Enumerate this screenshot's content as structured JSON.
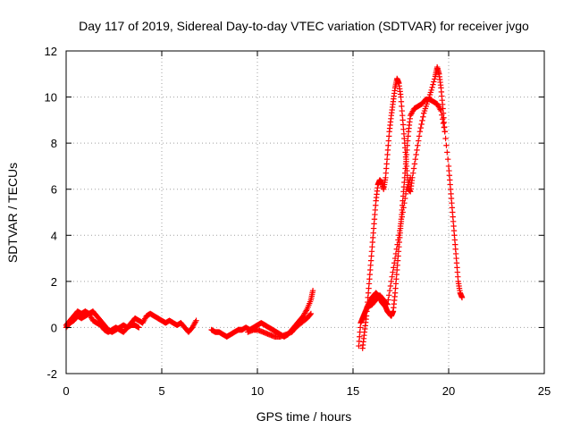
{
  "chart_data": {
    "type": "scatter",
    "title": "Day 117 of 2019, Sidereal Day-to-day VTEC variation (SDTVAR) for receiver jvgo",
    "xlabel": "GPS time / hours",
    "ylabel": "SDTVAR / TECUs",
    "xlim": [
      0,
      25
    ],
    "ylim": [
      -2,
      12
    ],
    "xticks": [
      0,
      5,
      10,
      15,
      20,
      25
    ],
    "yticks": [
      -2,
      0,
      2,
      4,
      6,
      8,
      10,
      12
    ],
    "xtick_labels": [
      "0",
      "5",
      "10",
      "15",
      "20",
      "25"
    ],
    "ytick_labels": [
      "-2",
      "0",
      "2",
      "4",
      "6",
      "8",
      "10",
      "12"
    ],
    "grid": true,
    "marker": "+",
    "marker_color": "#ff0000",
    "series": [
      {
        "name": "SDTVAR",
        "segments": [
          [
            [
              0.0,
              0.1
            ],
            [
              0.2,
              0.3
            ],
            [
              0.4,
              0.5
            ],
            [
              0.6,
              0.7
            ],
            [
              0.8,
              0.6
            ],
            [
              1.0,
              0.7
            ],
            [
              1.2,
              0.6
            ],
            [
              1.4,
              0.7
            ],
            [
              1.6,
              0.5
            ],
            [
              1.8,
              0.3
            ],
            [
              2.0,
              0.1
            ],
            [
              2.2,
              -0.1
            ],
            [
              2.4,
              -0.2
            ],
            [
              2.6,
              -0.1
            ],
            [
              2.8,
              0.0
            ],
            [
              3.0,
              0.1
            ],
            [
              3.2,
              0.0
            ],
            [
              3.4,
              0.2
            ],
            [
              3.6,
              0.4
            ],
            [
              3.8,
              0.3
            ],
            [
              4.0,
              0.2
            ],
            [
              4.2,
              0.5
            ],
            [
              4.4,
              0.6
            ],
            [
              4.6,
              0.5
            ],
            [
              4.8,
              0.4
            ],
            [
              5.0,
              0.3
            ],
            [
              5.2,
              0.2
            ],
            [
              5.4,
              0.3
            ],
            [
              5.6,
              0.2
            ],
            [
              5.8,
              0.1
            ],
            [
              6.0,
              0.2
            ],
            [
              6.2,
              0.0
            ],
            [
              6.4,
              -0.2
            ],
            [
              6.6,
              0.0
            ],
            [
              6.8,
              0.3
            ]
          ],
          [
            [
              0.0,
              0.0
            ],
            [
              0.2,
              0.2
            ],
            [
              0.4,
              0.3
            ],
            [
              0.6,
              0.5
            ],
            [
              0.8,
              0.4
            ],
            [
              1.0,
              0.5
            ],
            [
              1.2,
              0.6
            ],
            [
              1.4,
              0.3
            ],
            [
              1.6,
              0.2
            ],
            [
              1.8,
              0.1
            ],
            [
              2.0,
              -0.1
            ],
            [
              2.2,
              -0.2
            ],
            [
              2.4,
              -0.1
            ],
            [
              2.6,
              0.0
            ],
            [
              2.8,
              -0.1
            ],
            [
              3.0,
              -0.2
            ],
            [
              3.2,
              0.0
            ],
            [
              3.4,
              0.1
            ],
            [
              3.6,
              0.1
            ],
            [
              3.8,
              0.0
            ]
          ],
          [
            [
              7.6,
              -0.1
            ],
            [
              7.8,
              -0.2
            ],
            [
              8.0,
              -0.2
            ],
            [
              8.2,
              -0.3
            ],
            [
              8.4,
              -0.4
            ],
            [
              8.6,
              -0.3
            ],
            [
              8.8,
              -0.2
            ],
            [
              9.0,
              -0.1
            ],
            [
              9.2,
              -0.1
            ],
            [
              9.4,
              0.0
            ],
            [
              9.6,
              -0.1
            ],
            [
              9.8,
              0.0
            ],
            [
              10.0,
              0.1
            ],
            [
              10.2,
              0.2
            ],
            [
              10.4,
              0.1
            ],
            [
              10.6,
              0.0
            ],
            [
              10.8,
              -0.1
            ],
            [
              11.0,
              -0.2
            ],
            [
              11.2,
              -0.3
            ],
            [
              11.4,
              -0.4
            ],
            [
              11.6,
              -0.3
            ],
            [
              11.8,
              -0.1
            ],
            [
              12.0,
              0.1
            ],
            [
              12.2,
              0.3
            ],
            [
              12.4,
              0.5
            ],
            [
              12.6,
              0.8
            ],
            [
              12.8,
              1.2
            ],
            [
              12.9,
              1.6
            ]
          ],
          [
            [
              9.5,
              -0.2
            ],
            [
              9.8,
              -0.1
            ],
            [
              10.0,
              -0.1
            ],
            [
              10.3,
              -0.2
            ],
            [
              10.6,
              -0.3
            ],
            [
              10.9,
              -0.4
            ],
            [
              11.2,
              -0.4
            ],
            [
              11.5,
              -0.3
            ],
            [
              11.8,
              -0.2
            ],
            [
              12.0,
              0.0
            ],
            [
              12.3,
              0.2
            ],
            [
              12.6,
              0.4
            ],
            [
              12.8,
              0.6
            ]
          ],
          [
            [
              15.3,
              -0.8
            ],
            [
              15.4,
              0.2
            ],
            [
              15.5,
              0.4
            ],
            [
              15.6,
              0.6
            ],
            [
              15.7,
              0.8
            ],
            [
              15.8,
              1.0
            ],
            [
              15.9,
              1.1
            ],
            [
              16.0,
              1.3
            ],
            [
              16.1,
              1.4
            ],
            [
              16.2,
              1.5
            ],
            [
              16.3,
              1.4
            ],
            [
              16.4,
              1.3
            ],
            [
              16.5,
              1.1
            ],
            [
              16.6,
              1.0
            ],
            [
              16.7,
              0.9
            ],
            [
              16.8,
              0.7
            ],
            [
              16.9,
              0.6
            ],
            [
              17.0,
              0.5
            ],
            [
              17.1,
              0.7
            ],
            [
              17.2,
              1.5
            ],
            [
              17.3,
              2.5
            ],
            [
              17.4,
              3.5
            ],
            [
              17.5,
              4.5
            ],
            [
              17.6,
              5.5
            ],
            [
              17.7,
              6.5
            ],
            [
              17.8,
              7.5
            ],
            [
              17.9,
              8.5
            ],
            [
              18.0,
              9.2
            ],
            [
              18.2,
              9.5
            ],
            [
              18.4,
              9.6
            ],
            [
              18.6,
              9.7
            ],
            [
              18.8,
              9.9
            ],
            [
              19.0,
              9.9
            ],
            [
              19.2,
              9.8
            ],
            [
              19.4,
              9.7
            ],
            [
              19.6,
              9.4
            ],
            [
              19.8,
              8.5
            ],
            [
              20.0,
              7.0
            ],
            [
              20.1,
              6.0
            ],
            [
              20.2,
              5.0
            ],
            [
              20.3,
              4.0
            ],
            [
              20.4,
              3.0
            ],
            [
              20.5,
              2.0
            ],
            [
              20.6,
              1.5
            ],
            [
              20.7,
              1.3
            ]
          ],
          [
            [
              15.5,
              -0.9
            ],
            [
              15.6,
              -0.2
            ],
            [
              15.7,
              0.5
            ],
            [
              15.8,
              1.5
            ],
            [
              15.9,
              2.5
            ],
            [
              16.0,
              3.5
            ],
            [
              16.1,
              4.5
            ],
            [
              16.2,
              5.5
            ],
            [
              16.3,
              6.2
            ],
            [
              16.4,
              6.4
            ],
            [
              16.5,
              6.3
            ],
            [
              16.6,
              6.0
            ],
            [
              16.7,
              6.5
            ],
            [
              16.8,
              7.5
            ],
            [
              16.9,
              8.5
            ],
            [
              17.0,
              9.2
            ],
            [
              17.1,
              9.8
            ],
            [
              17.2,
              10.4
            ],
            [
              17.3,
              10.8
            ],
            [
              17.4,
              10.6
            ],
            [
              17.5,
              10.0
            ],
            [
              17.6,
              9.0
            ],
            [
              17.7,
              8.0
            ],
            [
              17.8,
              7.0
            ],
            [
              17.9,
              6.0
            ],
            [
              18.0,
              5.9
            ],
            [
              18.1,
              6.5
            ],
            [
              18.3,
              7.5
            ],
            [
              18.5,
              8.5
            ],
            [
              18.7,
              9.3
            ],
            [
              18.9,
              9.8
            ],
            [
              19.1,
              10.3
            ],
            [
              19.3,
              10.9
            ],
            [
              19.4,
              11.3
            ],
            [
              19.5,
              11.0
            ],
            [
              19.6,
              10.4
            ],
            [
              19.7,
              9.5
            ],
            [
              19.8,
              8.5
            ]
          ],
          [
            [
              15.8,
              0.9
            ],
            [
              16.0,
              1.0
            ],
            [
              16.2,
              1.2
            ],
            [
              16.4,
              1.4
            ],
            [
              16.6,
              1.2
            ],
            [
              16.8,
              1.0
            ],
            [
              17.0,
              2.0
            ],
            [
              17.2,
              3.0
            ],
            [
              17.4,
              4.0
            ],
            [
              17.6,
              5.0
            ],
            [
              17.8,
              6.0
            ],
            [
              18.0,
              6.5
            ]
          ]
        ]
      }
    ]
  }
}
